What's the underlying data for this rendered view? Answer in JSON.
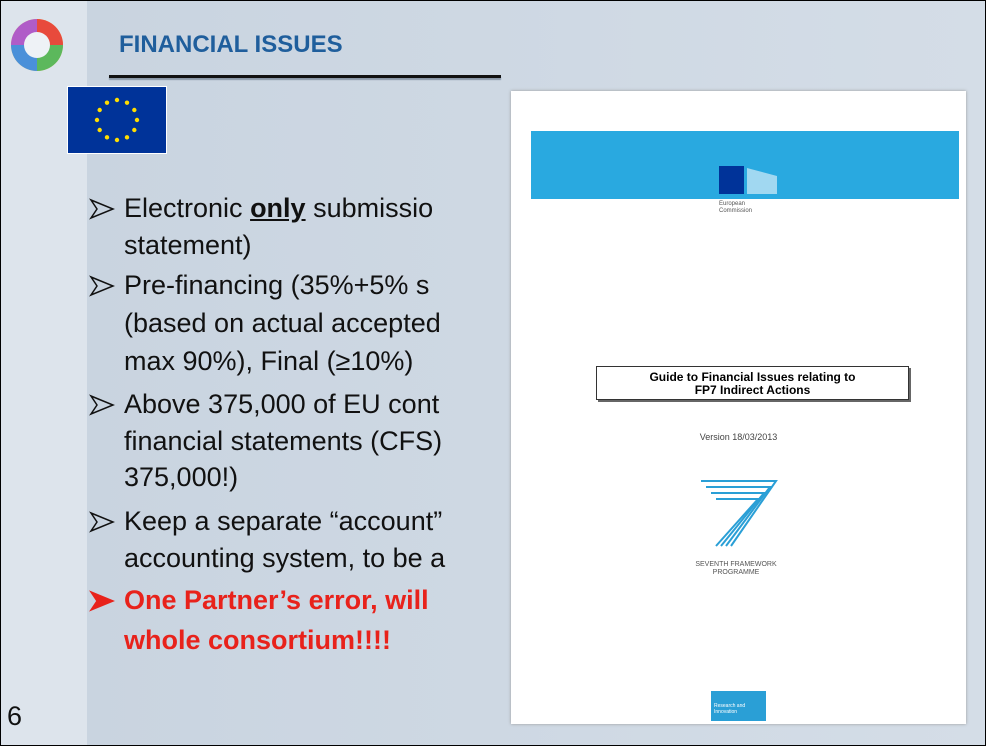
{
  "slide": {
    "title": "FINANCIAL ISSUES",
    "page_number": "6",
    "bullets": [
      {
        "lines": [
          [
            "Electronic ",
            "only",
            " submissio"
          ],
          [
            "statement)"
          ]
        ]
      },
      {
        "lines": [
          [
            "Pre-financing  (35%+5% s"
          ],
          [
            "(based on actual accepted"
          ],
          [
            "max 90%), Final (≥10%)"
          ]
        ]
      },
      {
        "lines": [
          [
            "Above 375,000 of EU cont"
          ],
          [
            "financial statements (CFS)"
          ],
          [
            "375,000!)"
          ]
        ]
      },
      {
        "lines": [
          [
            "Keep a separate “account”"
          ],
          [
            "accounting system, to be a"
          ]
        ]
      },
      {
        "lines": [
          [
            "One Partner’s error, will"
          ],
          [
            "whole consortium!!!!"
          ]
        ]
      }
    ]
  },
  "document": {
    "logo_text": [
      "European",
      "Commission"
    ],
    "title": [
      "Guide to Financial Issues relating to",
      "FP7 Indirect Actions"
    ],
    "version": "Version 18/03/2013",
    "programme": [
      "SEVENTH FRAMEWORK",
      "PROGRAMME"
    ],
    "footer": [
      "Research and",
      "Innovation"
    ]
  }
}
